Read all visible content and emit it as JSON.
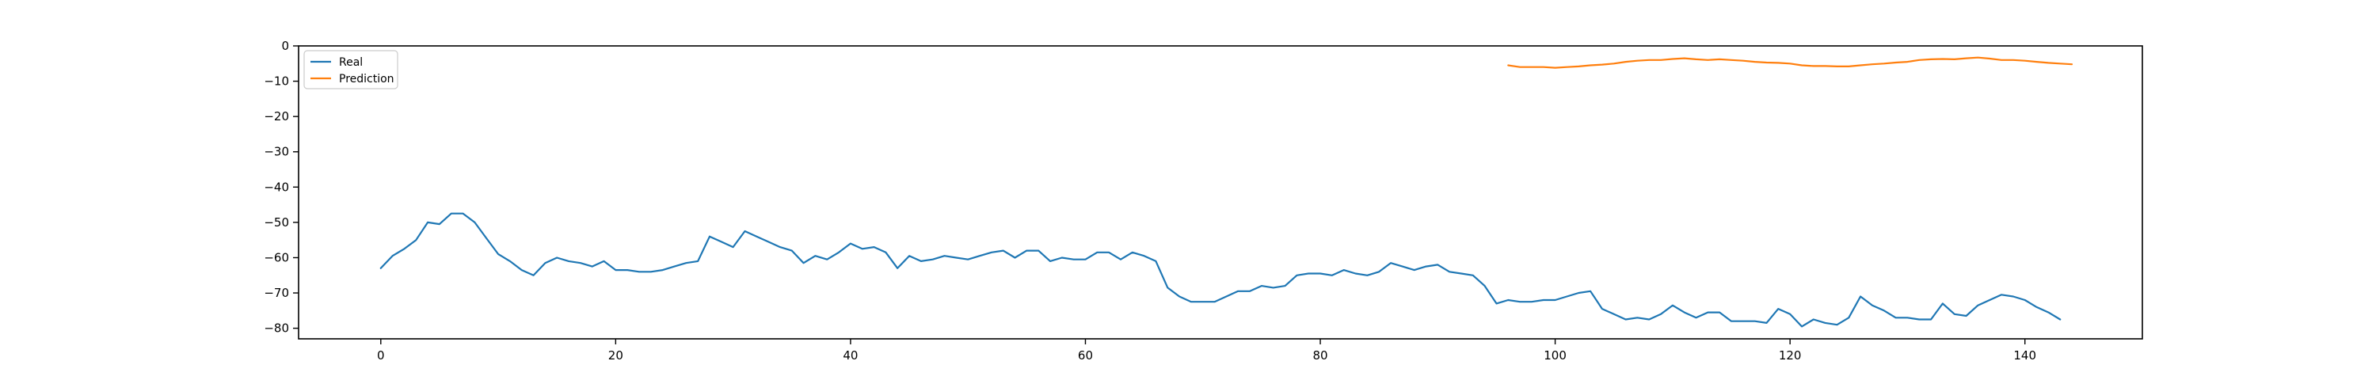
{
  "chart_data": {
    "type": "line",
    "title": "",
    "xlabel": "",
    "ylabel": "",
    "xlim": [
      -7,
      150
    ],
    "ylim": [
      -83,
      0
    ],
    "xticks": [
      0,
      20,
      40,
      60,
      80,
      100,
      120,
      140
    ],
    "yticks": [
      0,
      -10,
      -20,
      -30,
      -40,
      -50,
      -60,
      -70,
      -80
    ],
    "xtick_labels": [
      "0",
      "20",
      "40",
      "60",
      "80",
      "100",
      "120",
      "140"
    ],
    "ytick_labels": [
      "0",
      "−10",
      "−20",
      "−30",
      "−40",
      "−50",
      "−60",
      "−70",
      "−80"
    ],
    "grid": false,
    "legend": {
      "position": "upper-left",
      "entries": [
        "Real",
        "Prediction"
      ]
    },
    "series": [
      {
        "name": "Real",
        "color": "#1f77b4",
        "x_start": 0,
        "values": [
          -63,
          -59.5,
          -57.5,
          -55,
          -50,
          -50.5,
          -47.5,
          -47.5,
          -50,
          -54.5,
          -59,
          -61,
          -63.5,
          -65,
          -61.5,
          -60,
          -61,
          -61.5,
          -62.5,
          -61,
          -63.5,
          -63.5,
          -64,
          -64,
          -63.5,
          -62.5,
          -61.5,
          -61,
          -54,
          -55.5,
          -57,
          -52.5,
          -54,
          -55.5,
          -57,
          -58,
          -61.5,
          -59.5,
          -60.5,
          -58.5,
          -56,
          -57.5,
          -57,
          -58.5,
          -63,
          -59.5,
          -61,
          -60.5,
          -59.5,
          -60,
          -60.5,
          -59.5,
          -58.5,
          -58,
          -60,
          -58,
          -58,
          -61,
          -60,
          -60.5,
          -60.5,
          -58.5,
          -58.5,
          -60.5,
          -58.5,
          -59.5,
          -61,
          -68.5,
          -71,
          -72.5,
          -72.5,
          -72.5,
          -71,
          -69.5,
          -69.5,
          -68,
          -68.5,
          -68,
          -65,
          -64.5,
          -64.5,
          -65,
          -63.5,
          -64.5,
          -65,
          -64,
          -61.5,
          -62.5,
          -63.5,
          -62.5,
          -62,
          -64,
          -64.5,
          -65,
          -68,
          -73,
          -72,
          -72.5,
          -72.5,
          -72,
          -72,
          -71,
          -70,
          -69.5,
          -74.5,
          -76,
          -77.5,
          -77,
          -77.5,
          -76,
          -73.5,
          -75.5,
          -77,
          -75.5,
          -75.5,
          -78,
          -78,
          -78,
          -78.5,
          -74.5,
          -76,
          -79.5,
          -77.5,
          -78.5,
          -79,
          -77,
          -71,
          -73.5,
          -75,
          -77,
          -77,
          -77.5,
          -77.5,
          -73,
          -76,
          -76.5,
          -73.5,
          -72,
          -70.5,
          -71,
          -72,
          -74,
          -75.5,
          -77.5
        ]
      },
      {
        "name": "Prediction",
        "color": "#ff7f0e",
        "x_start": 96,
        "values": [
          -5.5,
          -6,
          -6,
          -6,
          -6.2,
          -6,
          -5.8,
          -5.5,
          -5.3,
          -5,
          -4.5,
          -4.2,
          -4,
          -4,
          -3.7,
          -3.5,
          -3.8,
          -4,
          -3.8,
          -4,
          -4.2,
          -4.5,
          -4.7,
          -4.8,
          -5,
          -5.5,
          -5.7,
          -5.7,
          -5.8,
          -5.8,
          -5.5,
          -5.2,
          -5,
          -4.7,
          -4.5,
          -4,
          -3.8,
          -3.7,
          -3.8,
          -3.5,
          -3.3,
          -3.6,
          -4,
          -4,
          -4.2,
          -4.5,
          -4.8,
          -5,
          -5.2
        ]
      }
    ]
  }
}
